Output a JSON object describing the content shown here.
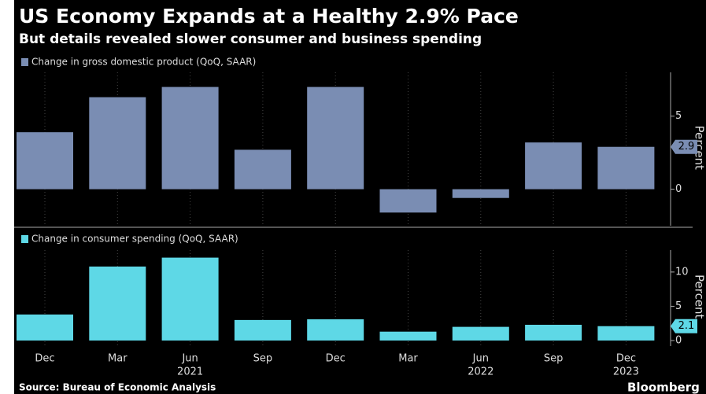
{
  "chart_data": [
    {
      "type": "bar",
      "title": "US Economy Expands at a Healthy 2.9% Pace",
      "subtitle": "But details revealed slower consumer and business spending",
      "series": [
        {
          "name": "Change in gross domestic product (QoQ, SAAR)",
          "color": "#7a8db3",
          "values": [
            3.9,
            6.3,
            7.0,
            2.7,
            7.0,
            -1.6,
            -0.6,
            3.2,
            2.9
          ]
        }
      ],
      "ylim": [
        -2.5,
        8
      ],
      "yticks": [
        0,
        5
      ],
      "ylabel": "Percent"
    },
    {
      "type": "bar",
      "categories": [
        "Dec",
        "Mar",
        "Jun",
        "Sep",
        "Dec",
        "Mar",
        "Jun",
        "Sep",
        "Dec"
      ],
      "years": [
        null,
        null,
        "2021",
        null,
        null,
        null,
        "2022",
        null,
        "2023"
      ],
      "series": [
        {
          "name": "Change in consumer spending (QoQ, SAAR)",
          "color": "#5ed8e6",
          "values": [
            3.8,
            10.8,
            12.1,
            3.0,
            3.1,
            1.3,
            2.0,
            2.3,
            2.1
          ]
        }
      ],
      "ylim": [
        -0.8,
        13.2
      ],
      "yticks": [
        0,
        5,
        10
      ],
      "ylabel": "Percent"
    }
  ],
  "source": "Source: Bureau of Economic Analysis",
  "credit": "Bloomberg"
}
